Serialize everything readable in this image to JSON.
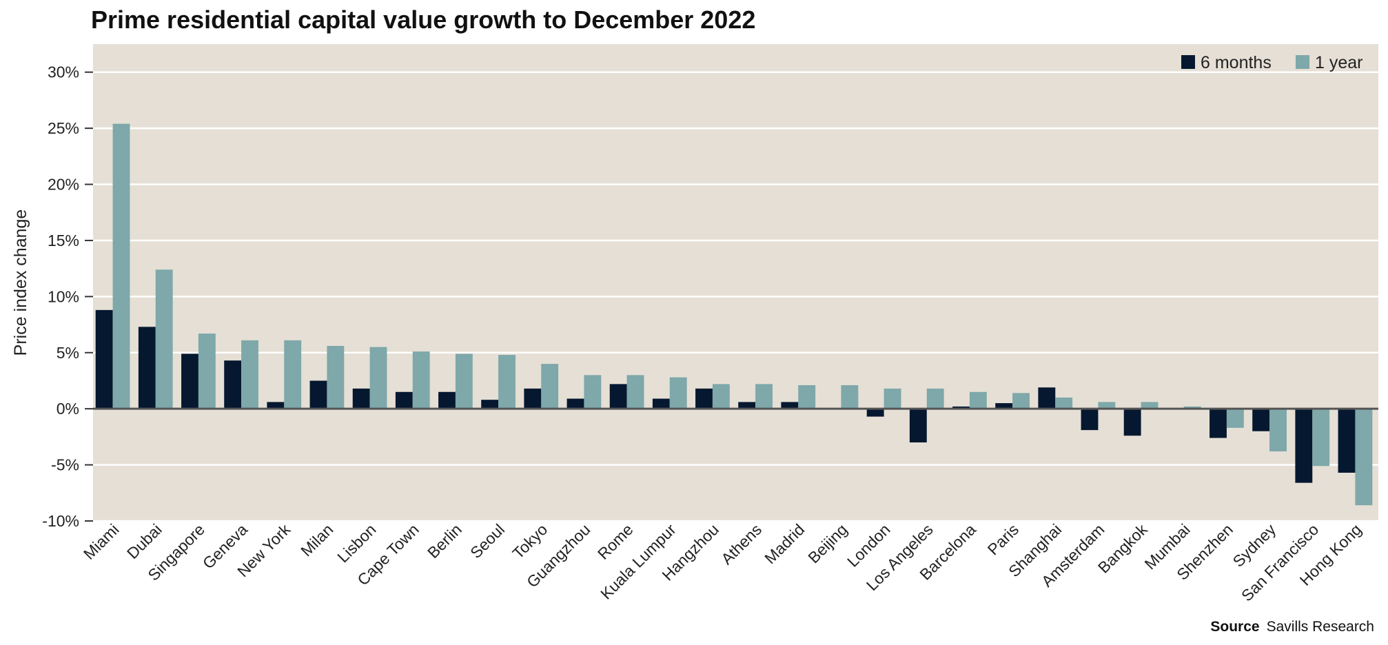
{
  "chart_data": {
    "type": "bar",
    "title": "Prime residential capital value growth to December 2022",
    "xlabel": "",
    "ylabel": "Price index change",
    "ylim": [
      -10,
      32.5
    ],
    "yticks": [
      -10,
      -5,
      0,
      5,
      10,
      15,
      20,
      25,
      30
    ],
    "ytick_labels": [
      "-10%",
      "-5%",
      "0%",
      "5%",
      "10%",
      "15%",
      "20%",
      "25%",
      "30%"
    ],
    "grid": true,
    "legend_position": "top-right",
    "categories": [
      "Miami",
      "Dubai",
      "Singapore",
      "Geneva",
      "New York",
      "Milan",
      "Lisbon",
      "Cape Town",
      "Berlin",
      "Seoul",
      "Tokyo",
      "Guangzhou",
      "Rome",
      "Kuala Lumpur",
      "Hangzhou",
      "Athens",
      "Madrid",
      "Beijing",
      "London",
      "Los Angeles",
      "Barcelona",
      "Paris",
      "Shanghai",
      "Amsterdam",
      "Bangkok",
      "Mumbai",
      "Shenzhen",
      "Sydney",
      "San Francisco",
      "Hong Kong"
    ],
    "series": [
      {
        "name": "6 months",
        "color": "#061830",
        "values": [
          8.8,
          7.3,
          4.9,
          4.3,
          0.6,
          2.5,
          1.8,
          1.5,
          1.5,
          0.8,
          1.8,
          0.9,
          2.2,
          0.9,
          1.8,
          0.6,
          0.6,
          0.0,
          -0.7,
          -3.0,
          0.2,
          0.5,
          1.9,
          -1.9,
          -2.4,
          0.0,
          -2.6,
          -2.0,
          -6.6,
          -5.7
        ]
      },
      {
        "name": "1 year",
        "color": "#7ea8aa",
        "values": [
          25.4,
          12.4,
          6.7,
          6.1,
          6.1,
          5.6,
          5.5,
          5.1,
          4.9,
          4.8,
          4.0,
          3.0,
          3.0,
          2.8,
          2.2,
          2.2,
          2.1,
          2.1,
          1.8,
          1.8,
          1.5,
          1.4,
          1.0,
          0.6,
          0.6,
          0.2,
          -1.7,
          -3.8,
          -5.1,
          -8.6
        ]
      }
    ],
    "plot_background": "#e5dfd5",
    "grid_color": "#ffffff",
    "zero_line_color": "#555555"
  },
  "source": {
    "label": "Source",
    "text": "Savills Research"
  }
}
